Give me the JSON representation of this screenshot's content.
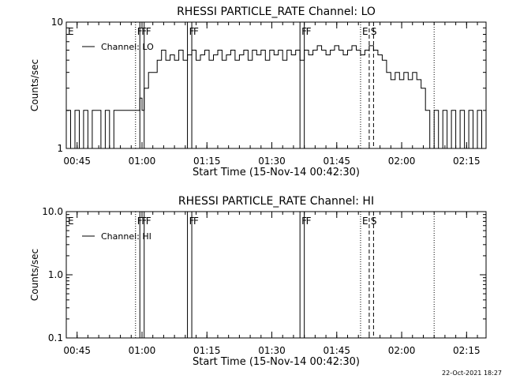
{
  "chart_data": [
    {
      "type": "line",
      "title": "RHESSI PARTICLE_RATE Channel: LO",
      "xlabel": "Start Time (15-Nov-14 00:42:30)",
      "ylabel": "Counts/sec",
      "yscale": "log",
      "ylim": [
        1,
        10
      ],
      "ytick_values": [
        1,
        10
      ],
      "ytick_labels": [
        "1",
        "10"
      ],
      "xlim": [
        0,
        97
      ],
      "xtick_values": [
        2.5,
        17.5,
        32.5,
        47.5,
        62.5,
        77.5,
        92.5
      ],
      "xtick_labels": [
        "00:45",
        "01:00",
        "01:15",
        "01:30",
        "01:45",
        "02:00",
        "02:15"
      ],
      "legend": {
        "placement": "top-left",
        "label": "Channel: LO"
      },
      "series": [
        {
          "name": "Channel: LO",
          "x": [
            0,
            1,
            2,
            3,
            4,
            5,
            6,
            7,
            8,
            9,
            10,
            11,
            12,
            13,
            14,
            15,
            16,
            17,
            17.5,
            18,
            19,
            20,
            21,
            22,
            23,
            24,
            25,
            26,
            27,
            28,
            29,
            30,
            31,
            32,
            33,
            34,
            35,
            36,
            37,
            38,
            39,
            40,
            41,
            42,
            43,
            44,
            45,
            46,
            47,
            48,
            49,
            50,
            51,
            52,
            53,
            54,
            55,
            56,
            57,
            58,
            59,
            60,
            61,
            62,
            63,
            64,
            65,
            66,
            67,
            68,
            69,
            70,
            71,
            72,
            73,
            74,
            75,
            76,
            77,
            78,
            79,
            80,
            81,
            82,
            83,
            84,
            85,
            86,
            87,
            88,
            89,
            90,
            91,
            92,
            93,
            94,
            95,
            96,
            97
          ],
          "y": [
            2,
            1,
            2,
            1,
            2,
            1,
            2,
            2,
            1,
            2,
            1,
            2,
            2,
            2,
            2,
            2,
            2,
            2.5,
            2,
            3,
            4,
            4,
            5,
            6,
            5,
            5.5,
            5,
            6,
            5,
            5.5,
            6,
            5,
            5.5,
            6,
            5,
            5.5,
            6,
            5,
            5.5,
            6,
            5,
            5.5,
            6,
            5,
            6,
            5.5,
            6,
            5,
            6,
            5.5,
            6,
            5,
            6,
            5.5,
            6,
            5,
            6,
            5.5,
            6,
            6.5,
            6,
            5.5,
            6,
            6.5,
            6,
            5.5,
            6,
            6.5,
            6,
            5.5,
            6,
            6.5,
            6,
            5.5,
            5,
            4,
            3.5,
            4,
            3.5,
            4,
            3.5,
            4,
            3.5,
            3,
            2,
            1,
            2,
            1,
            2,
            1,
            2,
            1,
            2,
            1,
            2,
            1,
            2,
            1,
            2
          ]
        }
      ],
      "markers": [
        {
          "label": "E",
          "x": 0,
          "style": "none"
        },
        {
          "label": "F",
          "x": 16,
          "style": "dotted"
        },
        {
          "label": "F",
          "x": 17,
          "style": "solid"
        },
        {
          "label": "F",
          "x": 18,
          "style": "solid"
        },
        {
          "label": "F",
          "x": 28,
          "style": "solid"
        },
        {
          "label": "F",
          "x": 29,
          "style": "solid"
        },
        {
          "label": "F",
          "x": 54,
          "style": "solid"
        },
        {
          "label": "F",
          "x": 55,
          "style": "solid"
        },
        {
          "label": "E",
          "x": 68,
          "style": "dotted"
        },
        {
          "label": "S",
          "x": 70,
          "style": "dashed"
        },
        {
          "label": "",
          "x": 71,
          "style": "dashed"
        },
        {
          "label": "",
          "x": 85,
          "style": "dotted"
        }
      ]
    },
    {
      "type": "line",
      "title": "RHESSI PARTICLE_RATE Channel: HI",
      "xlabel": "Start Time (15-Nov-14 00:42:30)",
      "ylabel": "Counts/sec",
      "yscale": "log",
      "ylim": [
        0.1,
        10
      ],
      "ytick_values": [
        0.1,
        1,
        10
      ],
      "ytick_labels": [
        "0.1",
        "1.0",
        "10.0"
      ],
      "xlim": [
        0,
        97
      ],
      "xtick_values": [
        2.5,
        17.5,
        32.5,
        47.5,
        62.5,
        77.5,
        92.5
      ],
      "xtick_labels": [
        "00:45",
        "01:00",
        "01:15",
        "01:30",
        "01:45",
        "02:00",
        "02:15"
      ],
      "legend": {
        "placement": "top-left",
        "label": "Channel: HI"
      },
      "series": [
        {
          "name": "Channel: HI",
          "x": [],
          "y": []
        }
      ],
      "markers": [
        {
          "label": "E",
          "x": 0,
          "style": "none"
        },
        {
          "label": "F",
          "x": 16,
          "style": "dotted"
        },
        {
          "label": "F",
          "x": 17,
          "style": "solid"
        },
        {
          "label": "F",
          "x": 18,
          "style": "solid"
        },
        {
          "label": "F",
          "x": 28,
          "style": "solid"
        },
        {
          "label": "F",
          "x": 29,
          "style": "solid"
        },
        {
          "label": "F",
          "x": 54,
          "style": "solid"
        },
        {
          "label": "F",
          "x": 55,
          "style": "solid"
        },
        {
          "label": "E",
          "x": 68,
          "style": "dotted"
        },
        {
          "label": "S",
          "x": 70,
          "style": "dashed"
        },
        {
          "label": "",
          "x": 71,
          "style": "dashed"
        },
        {
          "label": "",
          "x": 85,
          "style": "dotted"
        }
      ]
    }
  ],
  "footer": {
    "timestamp": "22-Oct-2021 18:27"
  }
}
